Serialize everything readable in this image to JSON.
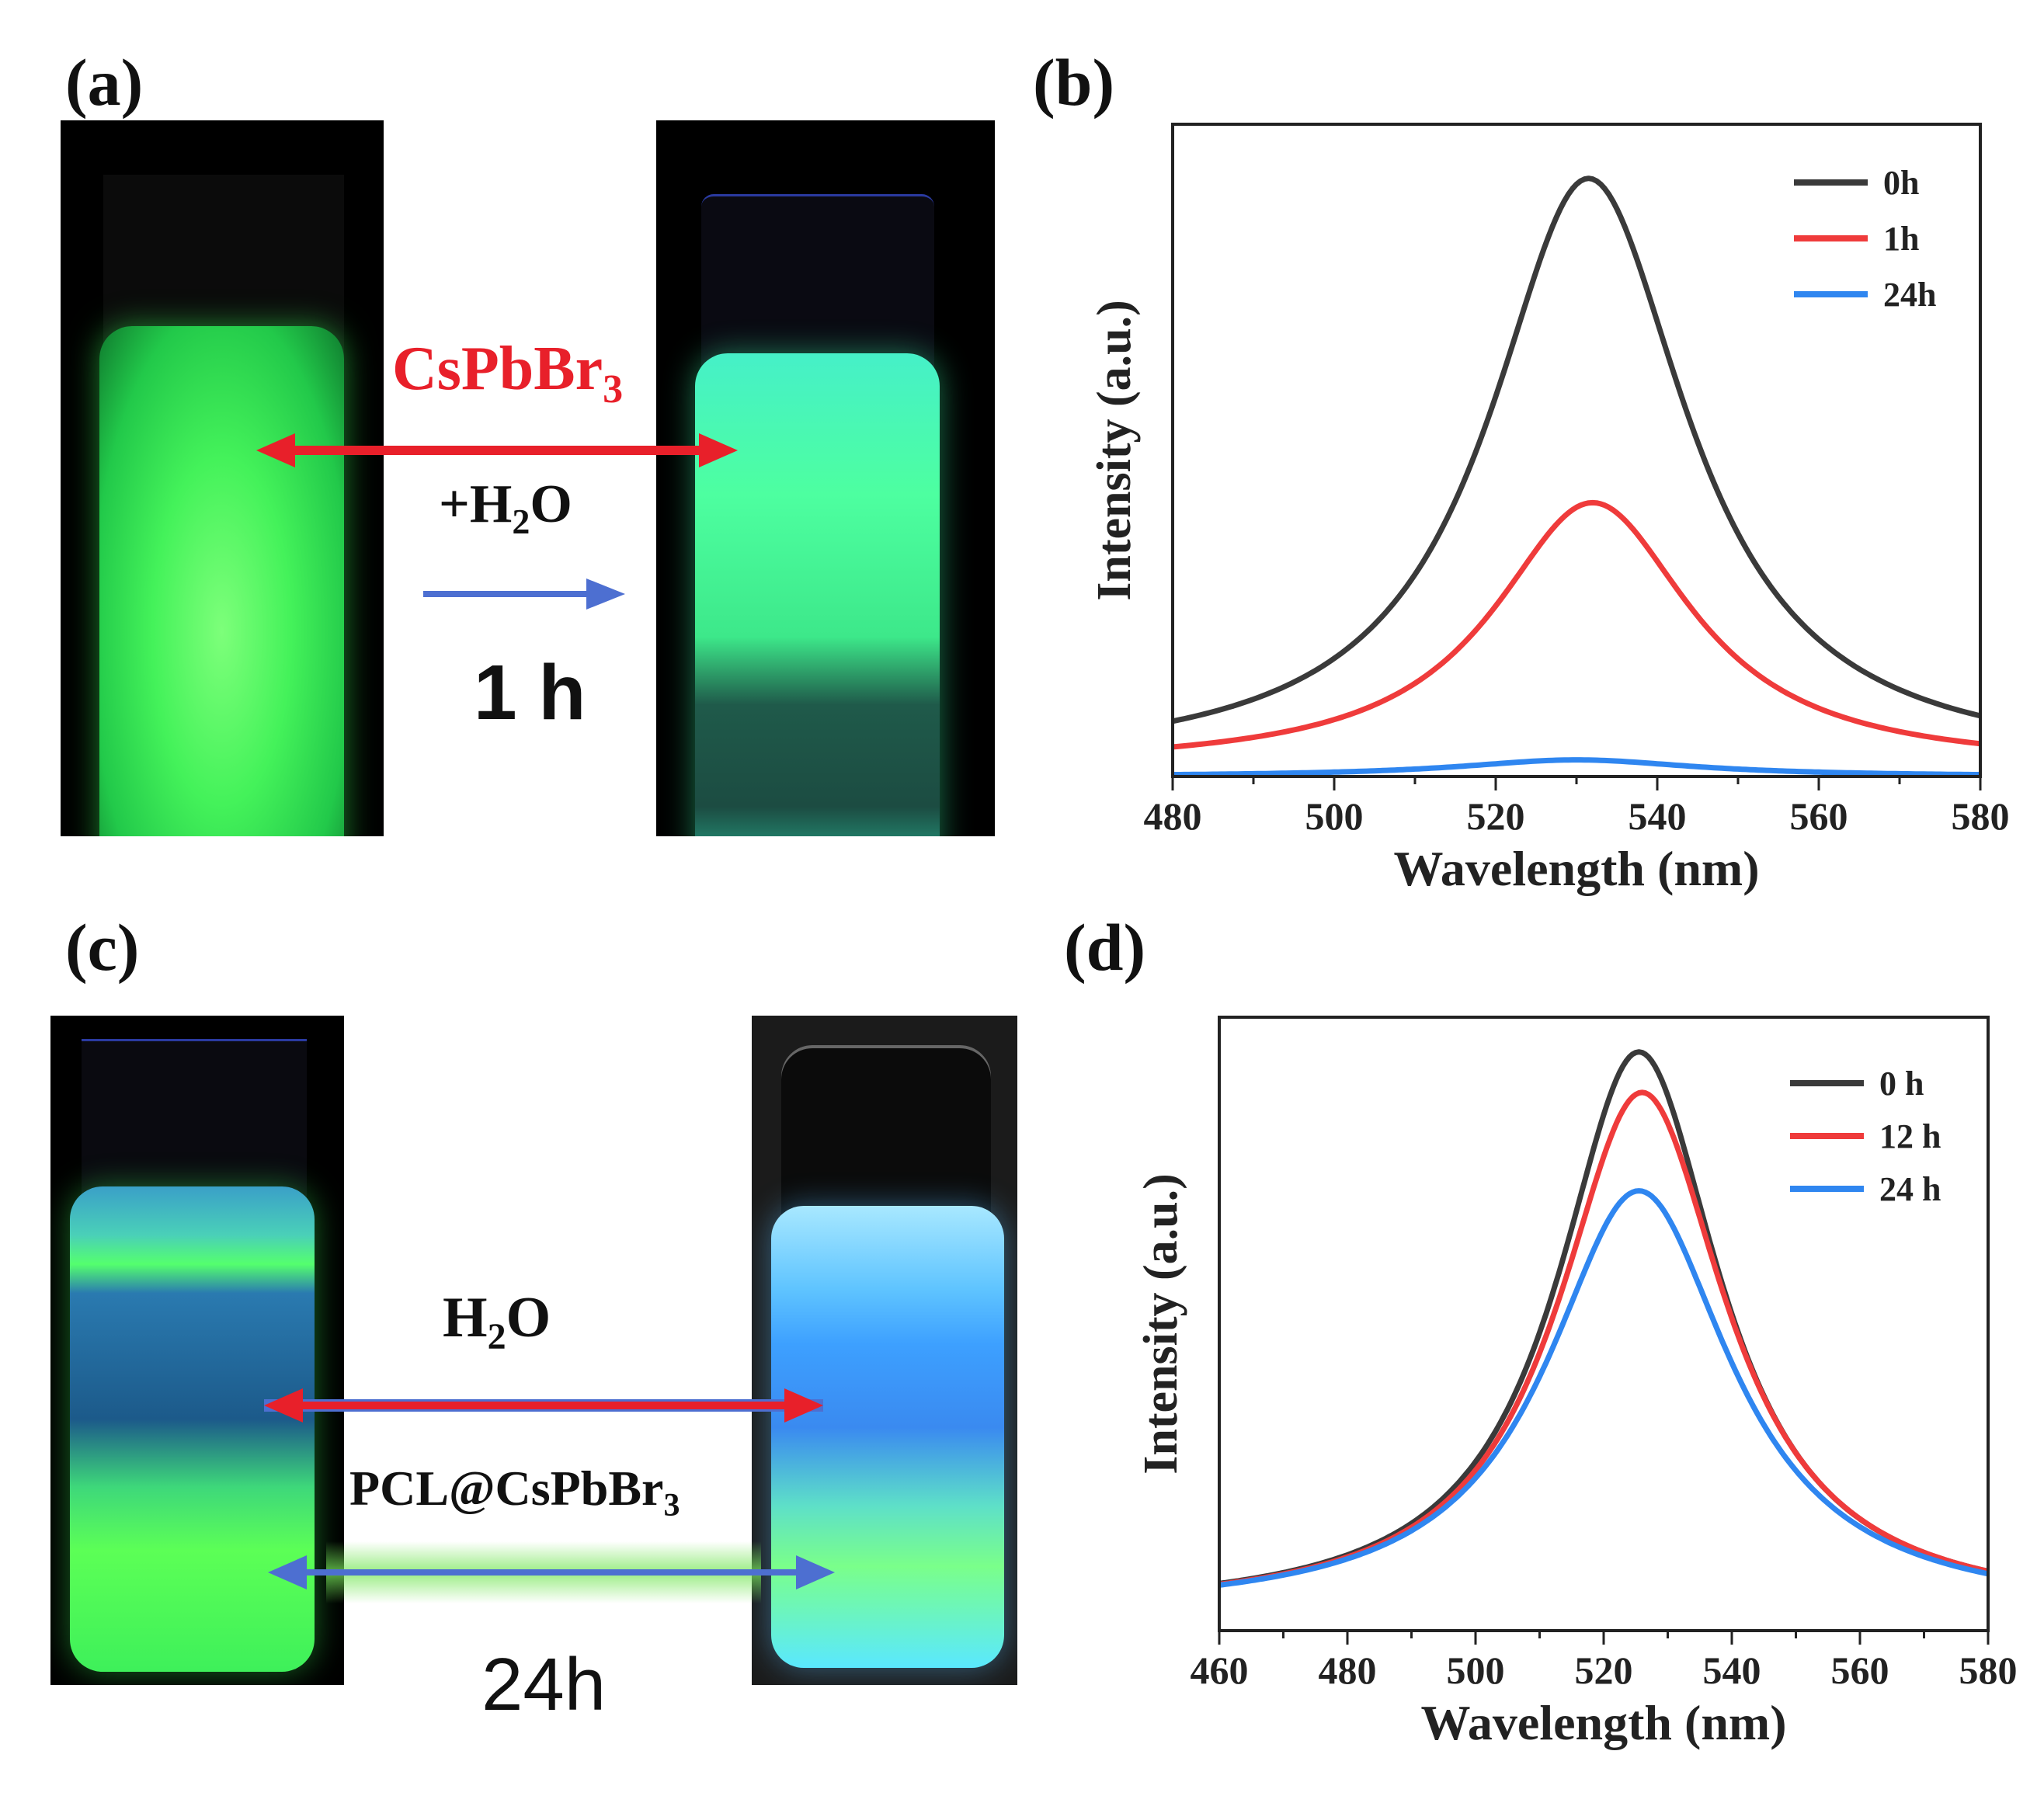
{
  "panels": {
    "a": {
      "label": "(a)",
      "compound_label": "CsPbBr",
      "compound_sub": "3",
      "additive_prefix": "+H",
      "additive_sub": "2",
      "additive_suffix": "O",
      "duration": "1 h"
    },
    "b": {
      "label": "(b)"
    },
    "c": {
      "label": "(c)",
      "water_prefix": "H",
      "water_sub": "2",
      "water_suffix": "O",
      "composite_label": "PCL@CsPbBr",
      "composite_sub": "3",
      "duration": "24h"
    },
    "d": {
      "label": "(d)"
    }
  },
  "colors": {
    "red_arrow": "#e8202a",
    "blue_arrow": "#4d6fd1",
    "green_glow": "#3cff5a",
    "series_black": "#3a3a3a",
    "series_red": "#ef3b3b",
    "series_blue": "#2f86f0"
  },
  "chart_data": [
    {
      "id": "b",
      "type": "line",
      "xlabel": "Wavelength (nm)",
      "ylabel": "Intensity (a.u.)",
      "xlim": [
        480,
        580
      ],
      "ylim": [
        0,
        1.06
      ],
      "xticks": [
        480,
        500,
        520,
        540,
        560,
        580
      ],
      "legend_position": "top-right",
      "series": [
        {
          "name": "0h",
          "color": "#3a3a3a",
          "peak_x": 531.5,
          "amplitude": 0.957,
          "hwhm": 15,
          "baseline": 0.015
        },
        {
          "name": "1h",
          "color": "#ef3b3b",
          "peak_x": 532,
          "amplitude": 0.43,
          "hwhm": 15,
          "baseline": 0.015
        },
        {
          "name": "24h",
          "color": "#2f86f0",
          "peak_x": 530,
          "amplitude": 0.027,
          "hwhm": 18,
          "baseline": 0.0
        }
      ]
    },
    {
      "id": "d",
      "type": "line",
      "xlabel": "Wavelength (nm)",
      "ylabel": "Intensity (a.u.)",
      "xlim": [
        460,
        580
      ],
      "ylim": [
        0,
        1.06
      ],
      "xticks": [
        460,
        480,
        500,
        520,
        540,
        560,
        580
      ],
      "legend_position": "top-right",
      "series": [
        {
          "name": "0  h",
          "color": "#3a3a3a",
          "peak_x": 525.5,
          "amplitude": 0.97,
          "hwhm": 15.5,
          "baseline": 0.03
        },
        {
          "name": "12 h",
          "color": "#ef3b3b",
          "peak_x": 526,
          "amplitude": 0.9,
          "hwhm": 16,
          "baseline": 0.03
        },
        {
          "name": "24 h",
          "color": "#2f86f0",
          "peak_x": 525.5,
          "amplitude": 0.73,
          "hwhm": 17.5,
          "baseline": 0.03
        }
      ]
    }
  ]
}
